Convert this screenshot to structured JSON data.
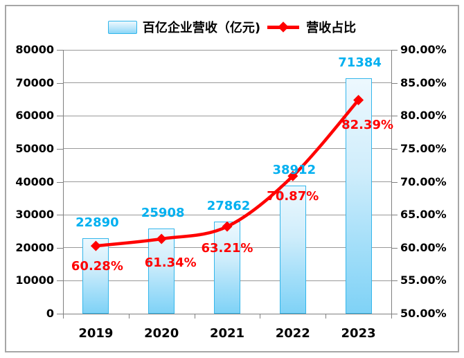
{
  "legend": {
    "revenue_label": "百亿企业营收（亿元)",
    "ratio_label": "营收占比"
  },
  "chart_data": {
    "type": "combo",
    "categories": [
      "2019",
      "2020",
      "2021",
      "2022",
      "2023"
    ],
    "series": [
      {
        "name": "百亿企业营收（亿元)",
        "type": "bar",
        "axis": "left",
        "values": [
          22890,
          25908,
          27862,
          38912,
          71384
        ],
        "labels": [
          "22890",
          "25908",
          "27862",
          "38912",
          "71384"
        ]
      },
      {
        "name": "营收占比",
        "type": "line",
        "axis": "right",
        "values": [
          60.28,
          61.34,
          63.21,
          70.87,
          82.39
        ],
        "labels": [
          "60.28%",
          "61.34%",
          "63.21%",
          "70.87%",
          "82.39%"
        ]
      }
    ],
    "left_axis": {
      "min": 0,
      "max": 80000,
      "step": 10000,
      "tick_labels": [
        "0",
        "10000",
        "20000",
        "30000",
        "40000",
        "50000",
        "60000",
        "70000",
        "80000"
      ]
    },
    "right_axis": {
      "min": 50,
      "max": 90,
      "step": 5,
      "tick_labels": [
        "50.00%",
        "55.00%",
        "60.00%",
        "65.00%",
        "70.00%",
        "75.00%",
        "80.00%",
        "85.00%",
        "90.00%"
      ]
    },
    "grid": true,
    "legend_position": "top"
  },
  "colors": {
    "bar_fill_top": "#EDF8FE",
    "bar_fill_bottom": "#7FD2F6",
    "bar_border": "#33B6EB",
    "line": "#FF0000",
    "value_label": "#00B0F0",
    "percent_label": "#FF0000",
    "gridline": "#999999",
    "axis": "#7F7F7F",
    "frame": "#A6A6A6",
    "axis_text": "#000000"
  }
}
